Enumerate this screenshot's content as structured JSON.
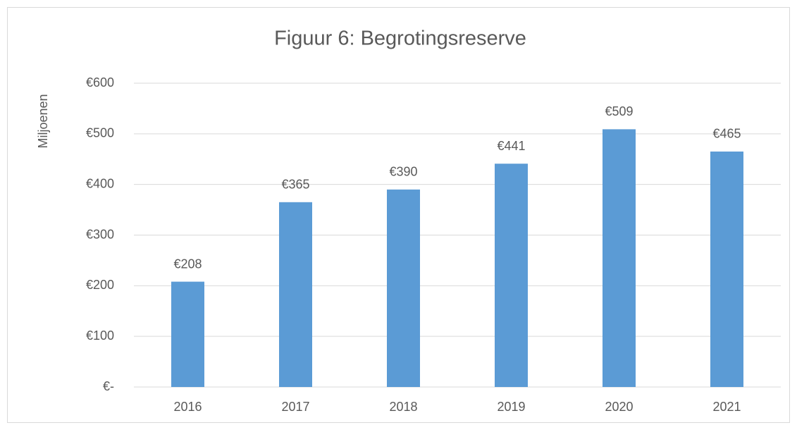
{
  "chart_data": {
    "type": "bar",
    "title": "Figuur 6: Begrotingsreserve",
    "y_label": "Miljoenen",
    "categories": [
      "2016",
      "2017",
      "2018",
      "2019",
      "2020",
      "2021"
    ],
    "values": [
      208,
      365,
      390,
      441,
      509,
      465
    ],
    "value_labels": [
      "€208",
      "€365",
      "€390",
      "€441",
      "€509",
      "€465"
    ],
    "color": "#5b9bd5",
    "ylim": [
      0,
      600
    ],
    "yticks": [
      {
        "value": 0,
        "label": "€-"
      },
      {
        "value": 100,
        "label": "€100"
      },
      {
        "value": 200,
        "label": "€200"
      },
      {
        "value": 300,
        "label": "€300"
      },
      {
        "value": 400,
        "label": "€400"
      },
      {
        "value": 500,
        "label": "€500"
      },
      {
        "value": 600,
        "label": "€600"
      }
    ],
    "grid": true
  }
}
